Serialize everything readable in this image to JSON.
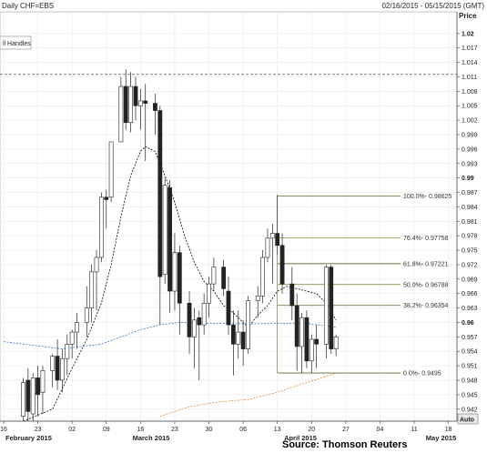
{
  "header": {
    "title": "Daily CHF=EBS",
    "range": "02/16/2015 - 05/15/2015 (GMT)",
    "price_label": "Price",
    "legend_box": "ll Handles",
    "auto_button": "Auto",
    "source": "Source: Thomson Reuters"
  },
  "chart_data": {
    "type": "candlestick",
    "symbol": "CHF=EBS",
    "yaxis": {
      "label": "Price",
      "ylim": [
        0.9395,
        1.0245
      ],
      "ticks": [
        1.02,
        1.017,
        1.014,
        1.011,
        1.008,
        1.005,
        1.002,
        0.999,
        0.996,
        0.993,
        0.99,
        0.987,
        0.984,
        0.981,
        0.978,
        0.975,
        0.972,
        0.969,
        0.966,
        0.963,
        0.96,
        0.957,
        0.954,
        0.951,
        0.948,
        0.945,
        0.942
      ],
      "bold_ticks": [
        1.02,
        0.99,
        0.96
      ],
      "tick_labels": [
        "1.02",
        "1.017",
        "1.014",
        "1.011",
        "1.008",
        "1.005",
        "1.002",
        "0.999",
        "0.996",
        "0.993",
        "0.99",
        "0.987",
        "0.984",
        "0.981",
        "0.978",
        "0.975",
        "0.972",
        "0.969",
        "0.966",
        "0.963",
        "0.96",
        "0.957",
        "0.954",
        "0.951",
        "0.948",
        "0.945",
        "0.942"
      ]
    },
    "xaxis": {
      "day_ticks": [
        {
          "day": 0,
          "label": "16"
        },
        {
          "day": 7,
          "label": "23"
        },
        {
          "day": 14,
          "label": "02"
        },
        {
          "day": 21,
          "label": "09"
        },
        {
          "day": 28,
          "label": "16"
        },
        {
          "day": 35,
          "label": "23"
        },
        {
          "day": 42,
          "label": "30"
        },
        {
          "day": 49,
          "label": "06"
        },
        {
          "day": 56,
          "label": "13"
        },
        {
          "day": 63,
          "label": "20"
        },
        {
          "day": 70,
          "label": "27"
        },
        {
          "day": 77,
          "label": "04"
        },
        {
          "day": 84,
          "label": "11"
        },
        {
          "day": 91,
          "label": "18"
        }
      ],
      "months": [
        {
          "day": 0,
          "label": "February 2015"
        },
        {
          "day": 26,
          "label": "March 2015"
        },
        {
          "day": 57,
          "label": "April 2015"
        },
        {
          "day": 86,
          "label": "May 2015"
        }
      ],
      "xlim": [
        0,
        92
      ]
    },
    "candles": [
      {
        "d": 4,
        "o": 0.9405,
        "h": 0.9485,
        "l": 0.9395,
        "c": 0.9475
      },
      {
        "d": 5,
        "o": 0.948,
        "h": 0.9505,
        "l": 0.9395,
        "c": 0.9415
      },
      {
        "d": 6,
        "o": 0.941,
        "h": 0.9495,
        "l": 0.9395,
        "c": 0.9485
      },
      {
        "d": 7,
        "o": 0.9485,
        "h": 0.951,
        "l": 0.9405,
        "c": 0.945
      },
      {
        "d": 8,
        "o": 0.9455,
        "h": 0.951,
        "l": 0.941,
        "c": 0.95
      },
      {
        "d": 10,
        "o": 0.95,
        "h": 0.9535,
        "l": 0.9465,
        "c": 0.953
      },
      {
        "d": 11,
        "o": 0.953,
        "h": 0.9565,
        "l": 0.946,
        "c": 0.948
      },
      {
        "d": 12,
        "o": 0.948,
        "h": 0.9545,
        "l": 0.9455,
        "c": 0.9525
      },
      {
        "d": 13,
        "o": 0.9525,
        "h": 0.9575,
        "l": 0.949,
        "c": 0.9555
      },
      {
        "d": 14,
        "o": 0.9555,
        "h": 0.9585,
        "l": 0.9525,
        "c": 0.958
      },
      {
        "d": 15,
        "o": 0.958,
        "h": 0.962,
        "l": 0.9545,
        "c": 0.96
      },
      {
        "d": 17,
        "o": 0.96,
        "h": 0.9675,
        "l": 0.957,
        "c": 0.963
      },
      {
        "d": 18,
        "o": 0.963,
        "h": 0.972,
        "l": 0.96,
        "c": 0.9705
      },
      {
        "d": 19,
        "o": 0.9705,
        "h": 0.975,
        "l": 0.9625,
        "c": 0.9735
      },
      {
        "d": 20,
        "o": 0.9735,
        "h": 0.987,
        "l": 0.9725,
        "c": 0.986
      },
      {
        "d": 21,
        "o": 0.986,
        "h": 0.9875,
        "l": 0.9795,
        "c": 0.9855
      },
      {
        "d": 22,
        "o": 0.986,
        "h": 0.9975,
        "l": 0.985,
        "c": 0.9975
      },
      {
        "d": 24,
        "o": 0.9975,
        "h": 1.011,
        "l": 0.9975,
        "c": 1.009
      },
      {
        "d": 25,
        "o": 1.009,
        "h": 1.0125,
        "l": 1.0,
        "c": 1.0015
      },
      {
        "d": 26,
        "o": 1.0015,
        "h": 1.012,
        "l": 0.9995,
        "c": 1.009
      },
      {
        "d": 27,
        "o": 1.009,
        "h": 1.011,
        "l": 1.002,
        "c": 1.005
      },
      {
        "d": 28,
        "o": 1.005,
        "h": 1.0085,
        "l": 1.0,
        "c": 1.006
      },
      {
        "d": 29,
        "o": 1.006,
        "h": 1.0095,
        "l": 0.9935,
        "c": 1.0055
      },
      {
        "d": 31,
        "o": 1.0055,
        "h": 1.0075,
        "l": 0.999,
        "c": 1.004
      },
      {
        "d": 32,
        "o": 1.004,
        "h": 1.005,
        "l": 0.9595,
        "c": 0.9695
      },
      {
        "d": 33,
        "o": 0.97,
        "h": 0.99,
        "l": 0.968,
        "c": 0.9885
      },
      {
        "d": 34,
        "o": 0.988,
        "h": 0.9895,
        "l": 0.962,
        "c": 0.9665
      },
      {
        "d": 35,
        "o": 0.9665,
        "h": 0.9785,
        "l": 0.9625,
        "c": 0.9745
      },
      {
        "d": 36,
        "o": 0.9745,
        "h": 0.976,
        "l": 0.9575,
        "c": 0.964
      },
      {
        "d": 38,
        "o": 0.964,
        "h": 0.9665,
        "l": 0.9535,
        "c": 0.957
      },
      {
        "d": 39,
        "o": 0.957,
        "h": 0.963,
        "l": 0.9505,
        "c": 0.9605
      },
      {
        "d": 40,
        "o": 0.961,
        "h": 0.9625,
        "l": 0.948,
        "c": 0.9595
      },
      {
        "d": 41,
        "o": 0.9595,
        "h": 0.966,
        "l": 0.9575,
        "c": 0.964
      },
      {
        "d": 42,
        "o": 0.964,
        "h": 0.9695,
        "l": 0.961,
        "c": 0.968
      },
      {
        "d": 43,
        "o": 0.968,
        "h": 0.9735,
        "l": 0.9665,
        "c": 0.9715
      },
      {
        "d": 45,
        "o": 0.9715,
        "h": 0.973,
        "l": 0.9655,
        "c": 0.967
      },
      {
        "d": 46,
        "o": 0.9665,
        "h": 0.9695,
        "l": 0.9575,
        "c": 0.9595
      },
      {
        "d": 47,
        "o": 0.9595,
        "h": 0.9625,
        "l": 0.949,
        "c": 0.9555
      },
      {
        "d": 48,
        "o": 0.9555,
        "h": 0.9625,
        "l": 0.9525,
        "c": 0.958
      },
      {
        "d": 49,
        "o": 0.958,
        "h": 0.9605,
        "l": 0.951,
        "c": 0.9545
      },
      {
        "d": 50,
        "o": 0.9545,
        "h": 0.9655,
        "l": 0.9535,
        "c": 0.9645
      },
      {
        "d": 52,
        "o": 0.9645,
        "h": 0.9675,
        "l": 0.961,
        "c": 0.9655
      },
      {
        "d": 53,
        "o": 0.9655,
        "h": 0.975,
        "l": 0.964,
        "c": 0.9735
      },
      {
        "d": 54,
        "o": 0.9735,
        "h": 0.9795,
        "l": 0.9725,
        "c": 0.9775
      },
      {
        "d": 55,
        "o": 0.9775,
        "h": 0.9805,
        "l": 0.968,
        "c": 0.9785
      },
      {
        "d": 56,
        "o": 0.9785,
        "h": 0.9865,
        "l": 0.974,
        "c": 0.976
      },
      {
        "d": 57,
        "o": 0.976,
        "h": 0.9785,
        "l": 0.966,
        "c": 0.968
      },
      {
        "d": 59,
        "o": 0.968,
        "h": 0.9715,
        "l": 0.9605,
        "c": 0.9635
      },
      {
        "d": 60,
        "o": 0.9635,
        "h": 0.966,
        "l": 0.95,
        "c": 0.955
      },
      {
        "d": 61,
        "o": 0.955,
        "h": 0.962,
        "l": 0.9495,
        "c": 0.961
      },
      {
        "d": 62,
        "o": 0.961,
        "h": 0.9625,
        "l": 0.9505,
        "c": 0.952
      },
      {
        "d": 63,
        "o": 0.952,
        "h": 0.9575,
        "l": 0.9495,
        "c": 0.9565
      },
      {
        "d": 64,
        "o": 0.9565,
        "h": 0.9595,
        "l": 0.9505,
        "c": 0.9555
      },
      {
        "d": 66,
        "o": 0.9555,
        "h": 0.972,
        "l": 0.9525,
        "c": 0.9715
      },
      {
        "d": 67,
        "o": 0.9715,
        "h": 0.972,
        "l": 0.9535,
        "c": 0.9545
      },
      {
        "d": 68,
        "o": 0.9545,
        "h": 0.9575,
        "l": 0.953,
        "c": 0.957
      }
    ],
    "moving_averages": [
      {
        "style": "dashed",
        "color": "#000000",
        "points": [
          [
            4,
            0.9395
          ],
          [
            10,
            0.942
          ],
          [
            14,
            0.9505
          ],
          [
            17,
            0.9565
          ],
          [
            20,
            0.964
          ],
          [
            22,
            0.972
          ],
          [
            24,
            0.982
          ],
          [
            26,
            0.9905
          ],
          [
            28,
            0.9955
          ],
          [
            29,
            0.9965
          ],
          [
            31,
            0.9955
          ],
          [
            33,
            0.9905
          ],
          [
            35,
            0.985
          ],
          [
            37,
            0.978
          ],
          [
            39,
            0.9725
          ],
          [
            41,
            0.9685
          ],
          [
            43,
            0.9665
          ],
          [
            45,
            0.9635
          ],
          [
            47,
            0.962
          ],
          [
            49,
            0.96
          ],
          [
            50,
            0.959
          ],
          [
            52,
            0.9615
          ],
          [
            54,
            0.9635
          ],
          [
            56,
            0.9665
          ],
          [
            58,
            0.9675
          ],
          [
            60,
            0.967
          ],
          [
            62,
            0.9665
          ],
          [
            64,
            0.966
          ],
          [
            66,
            0.964
          ],
          [
            68,
            0.9605
          ]
        ]
      },
      {
        "style": "dashed",
        "color": "#3a78c9",
        "points": [
          [
            0,
            0.956
          ],
          [
            8,
            0.955
          ],
          [
            12,
            0.9545
          ],
          [
            16,
            0.955
          ],
          [
            20,
            0.9555
          ],
          [
            24,
            0.957
          ],
          [
            28,
            0.9585
          ],
          [
            32,
            0.9595
          ],
          [
            36,
            0.96
          ],
          [
            44,
            0.9598
          ],
          [
            50,
            0.9597
          ],
          [
            56,
            0.9598
          ],
          [
            62,
            0.9598
          ],
          [
            68,
            0.959
          ]
        ]
      },
      {
        "style": "dashed",
        "color": "#e08a3c",
        "points": [
          [
            32,
            0.9405
          ],
          [
            38,
            0.9425
          ],
          [
            44,
            0.9435
          ],
          [
            50,
            0.944
          ],
          [
            56,
            0.9455
          ],
          [
            62,
            0.9475
          ],
          [
            68,
            0.9495
          ]
        ]
      }
    ],
    "resistance_line": {
      "y": 1.0115,
      "style": "dashed",
      "color": "#333333"
    },
    "fibonacci": {
      "anchor_high": {
        "d": 56,
        "y": 0.9863
      },
      "anchor_low": {
        "d": 62,
        "y": 0.9495
      },
      "levels": [
        {
          "label": "100.0%- 0.98625",
          "y": 0.98625,
          "color": "#5b6b2e"
        },
        {
          "label": "76.4%- 0.97758",
          "y": 0.97758,
          "color": "#8a8f3a"
        },
        {
          "label": "61.8%- 0.97221",
          "y": 0.97221,
          "color": "#5b6b2e"
        },
        {
          "label": "50.0%- 0.96788",
          "y": 0.96788,
          "color": "#6f7a2c"
        },
        {
          "label": "38.2%- 0.96354",
          "y": 0.96354,
          "color": "#5b6b2e"
        },
        {
          "label": "0.0%- 0.9495",
          "y": 0.9495,
          "color": "#5b6b2e"
        }
      ]
    },
    "up_color": "#ffffff",
    "down_color": "#222222",
    "grid": true
  }
}
